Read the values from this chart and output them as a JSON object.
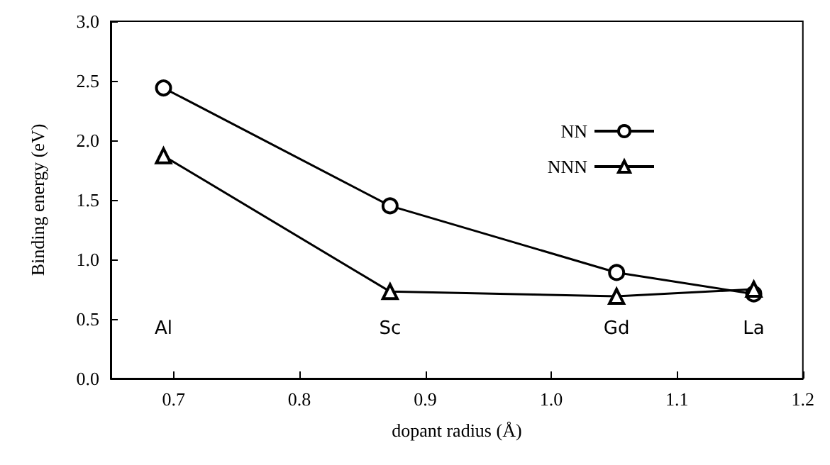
{
  "chart_data": {
    "type": "line",
    "xlabel": "dopant radius (Å)",
    "ylabel": "Binding energy (eV)",
    "x": [
      0.692,
      0.872,
      1.052,
      1.161
    ],
    "series": [
      {
        "name": "NN",
        "color": "#000000",
        "marker": "circle",
        "values": [
          2.44,
          1.45,
          0.89,
          0.71
        ]
      },
      {
        "name": "NNN",
        "color": "#000000",
        "marker": "triangle",
        "values": [
          1.87,
          0.73,
          0.69,
          0.75
        ]
      }
    ],
    "xlim": [
      0.65,
      1.2
    ],
    "xticks": [
      0.7,
      0.8,
      0.9,
      {
        "value": 1,
        "label": "1.0"
      },
      1.1,
      1.2
    ],
    "ylim": [
      0,
      3
    ],
    "yticks": [
      {
        "value": 0,
        "label": "0.0"
      },
      0.5,
      {
        "value": 1,
        "label": "1.0"
      },
      1.5,
      {
        "value": 2,
        "label": "2.0"
      },
      2.5,
      {
        "value": 3,
        "label": "3.0"
      }
    ],
    "annotations": [
      "Al",
      "Sc",
      "Gd",
      "La"
    ],
    "grid": false,
    "legend": "top right",
    "line_style": "solid"
  }
}
